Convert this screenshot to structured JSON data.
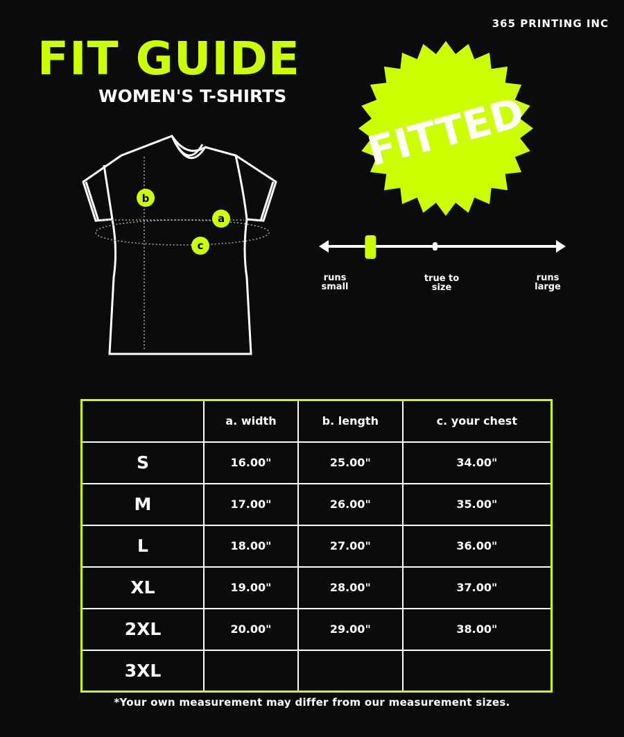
{
  "brand": "365 PRINTING INC",
  "title": "FIT GUIDE",
  "subtitle": "WOMEN'S T-SHIRTS",
  "badge": {
    "text": "FITTED",
    "color": "#ccff00"
  },
  "diagram": {
    "markers": [
      "b",
      "a",
      "c"
    ]
  },
  "fit_scale": {
    "labels": [
      "runs small",
      "true to size",
      "runs large"
    ],
    "value": 0.2,
    "min_label": "runs small",
    "max_label": "runs large"
  },
  "table": {
    "headers": [
      "",
      "a. width",
      "b. length",
      "c. your chest"
    ],
    "rows": [
      [
        "S",
        "16.00\"",
        "25.00\"",
        "34.00\""
      ],
      [
        "M",
        "17.00\"",
        "26.00\"",
        "35.00\""
      ],
      [
        "L",
        "18.00\"",
        "27.00\"",
        "36.00\""
      ],
      [
        "XL",
        "19.00\"",
        "28.00\"",
        "37.00\""
      ],
      [
        "2XL",
        "20.00\"",
        "29.00\"",
        "38.00\""
      ],
      [
        "3XL",
        "",
        "",
        ""
      ]
    ]
  },
  "note": "*Your own measurement may differ from our measurement sizes.",
  "colors": {
    "accent": "#ccff00",
    "background": "#0b0b0b"
  }
}
